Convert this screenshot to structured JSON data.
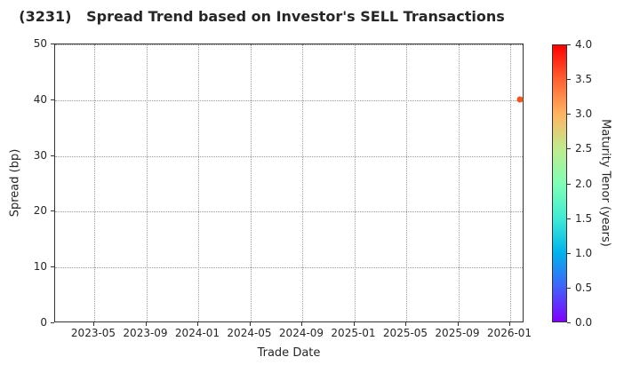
{
  "chart_data": {
    "type": "scatter",
    "title": "(3231)   Spread Trend based on Investor's SELL Transactions",
    "xlabel": "Trade Date",
    "ylabel": "Spread (bp)",
    "xticklabels": [
      "2023-05",
      "2023-09",
      "2024-01",
      "2024-05",
      "2024-09",
      "2025-01",
      "2025-05",
      "2025-09",
      "2026-01"
    ],
    "yticks": [
      0,
      10,
      20,
      30,
      40,
      50
    ],
    "ylim": [
      0,
      50
    ],
    "grid": true,
    "legend_position": "none",
    "points": [
      {
        "trade_date": "2026-01-25",
        "spread_bp": 40,
        "maturity_tenor_years": 3.5,
        "color": "#f4551e"
      }
    ],
    "colorbar": {
      "label": "Maturity Tenor (years)",
      "range": [
        0.0,
        4.0
      ],
      "ticks": [
        "4.0",
        "3.5",
        "3.0",
        "2.5",
        "2.0",
        "1.5",
        "1.0",
        "0.5",
        "0.0"
      ],
      "colormap": "rainbow",
      "gradient_stops_top_to_bottom": [
        "#ff0000",
        "#ff6232",
        "#ffb462",
        "#bfec8e",
        "#80ffb4",
        "#40ecd4",
        "#00b4ec",
        "#4062fa",
        "#8000ff"
      ]
    },
    "colors": {
      "grid": "#9a9a9a",
      "spine": "#333333",
      "text": "#262626",
      "background": "#ffffff"
    }
  }
}
